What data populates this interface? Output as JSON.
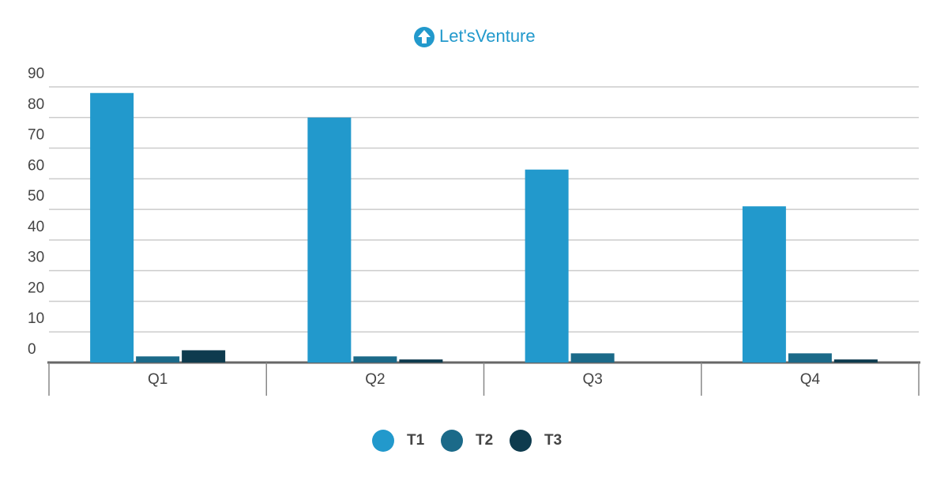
{
  "chart_data": {
    "type": "bar",
    "title": "Let'sVenture",
    "categories": [
      "Q1",
      "Q2",
      "Q3",
      "Q4"
    ],
    "series": [
      {
        "name": "T1",
        "color": "#2299cc",
        "values": [
          88,
          80,
          63,
          51
        ]
      },
      {
        "name": "T2",
        "color": "#1b6a89",
        "values": [
          2,
          2,
          3,
          3
        ]
      },
      {
        "name": "T3",
        "color": "#0e3b4e",
        "values": [
          4,
          1,
          0,
          1
        ]
      }
    ],
    "ylim": [
      0,
      90
    ],
    "yticks": [
      0,
      10,
      20,
      30,
      40,
      50,
      60,
      70,
      80,
      90
    ],
    "grid": true,
    "legend": "bottom"
  }
}
